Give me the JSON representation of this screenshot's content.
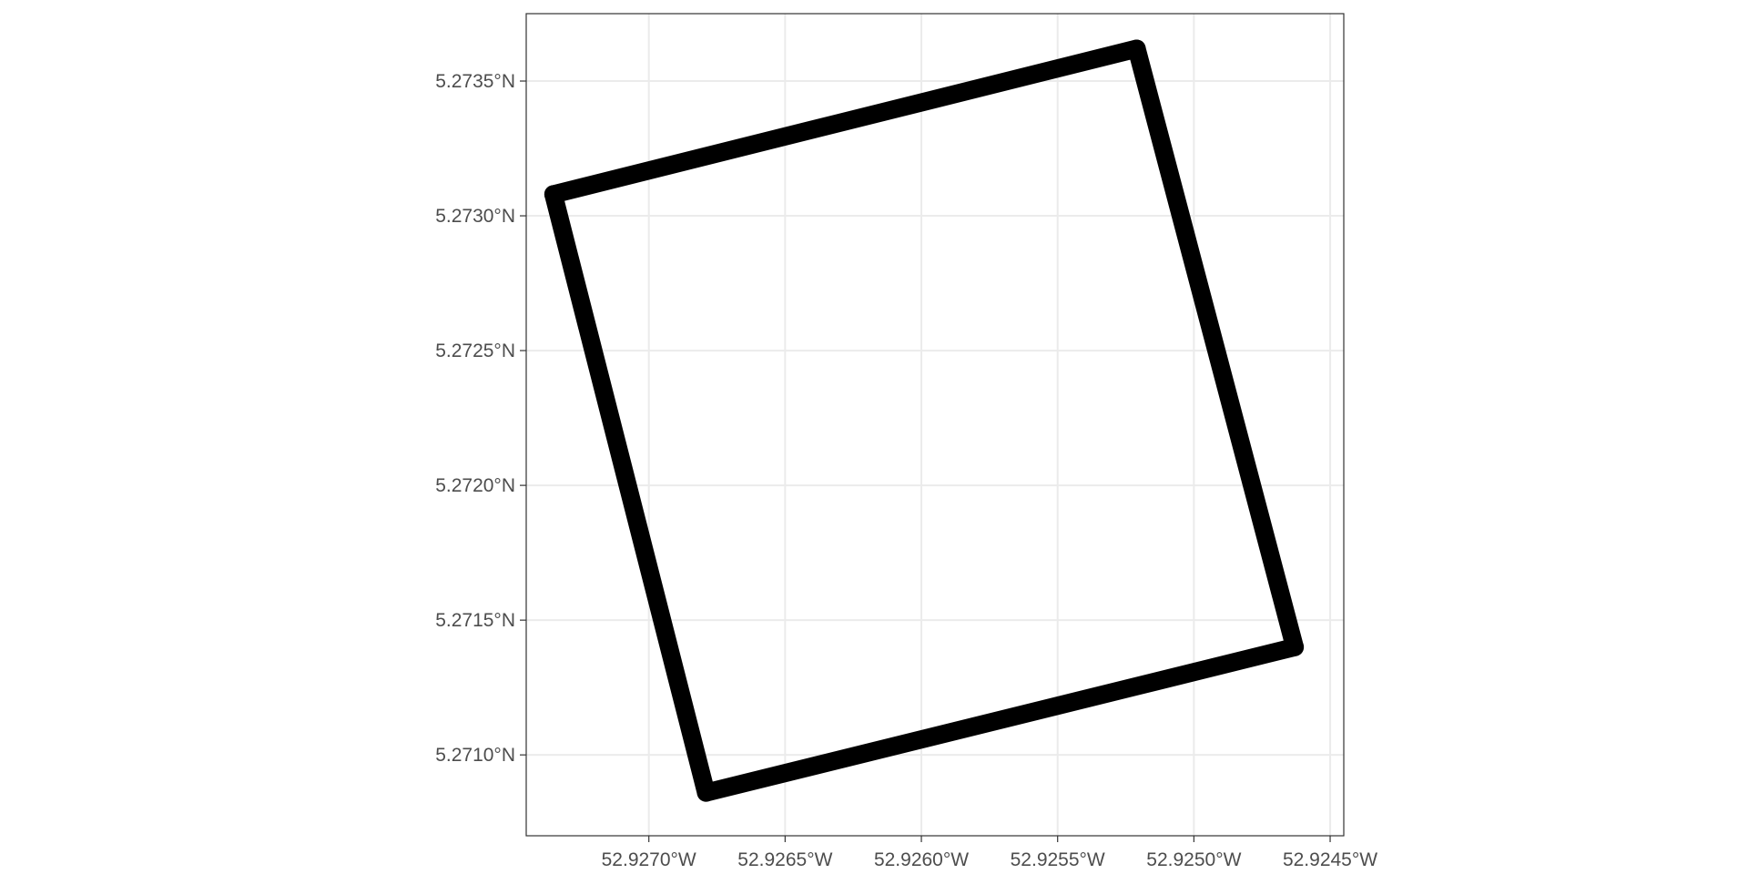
{
  "chart_data": {
    "type": "line",
    "title": "",
    "xlabel": "",
    "ylabel": "",
    "x_is_west_longitude": true,
    "xlim": [
      52.92745,
      52.92445
    ],
    "ylim": [
      5.2707,
      5.27375
    ],
    "xticks": [
      {
        "value": 52.927,
        "label": "52.9270°W"
      },
      {
        "value": 52.9265,
        "label": "52.9265°W"
      },
      {
        "value": 52.926,
        "label": "52.9260°W"
      },
      {
        "value": 52.9255,
        "label": "52.9255°W"
      },
      {
        "value": 52.925,
        "label": "52.9250°W"
      },
      {
        "value": 52.9245,
        "label": "52.9245°W"
      }
    ],
    "yticks": [
      {
        "value": 5.2735,
        "label": "5.2735°N"
      },
      {
        "value": 5.273,
        "label": "5.2730°N"
      },
      {
        "value": 5.2725,
        "label": "5.2725°N"
      },
      {
        "value": 5.272,
        "label": "5.2720°N"
      },
      {
        "value": 5.2715,
        "label": "5.2715°N"
      },
      {
        "value": 5.271,
        "label": "5.2710°N"
      }
    ],
    "grid": true,
    "legend": "none",
    "series": [
      {
        "color": "#000000",
        "x": [
          52.92735,
          52.92521,
          52.92463,
          52.92679,
          52.92735
        ],
        "y": [
          5.27308,
          5.27362,
          5.2714,
          5.27086,
          5.27308
        ]
      }
    ]
  }
}
